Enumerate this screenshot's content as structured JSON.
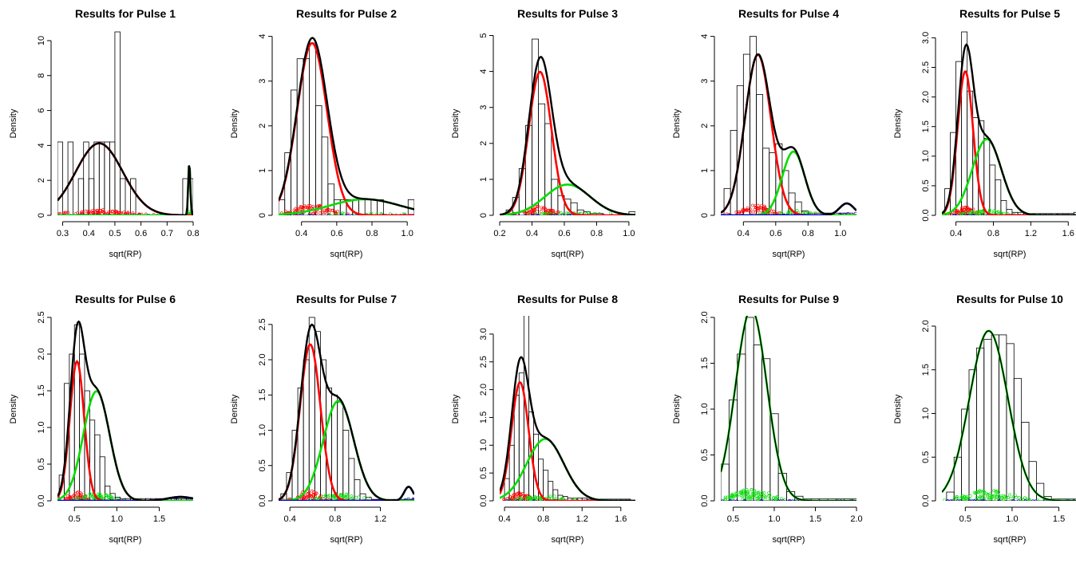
{
  "colors": {
    "total": "#000000",
    "comp1": "#ff0000",
    "comp2": "#00dd00",
    "comp3": "#0000cc",
    "bar_edge": "#000000",
    "background": "#ffffff"
  },
  "chart_data": [
    {
      "type": "histogram",
      "title": "Results for Pulse 1",
      "xlabel": "sqrt(RP)",
      "ylabel": "Density",
      "xlim": [
        0.28,
        0.8
      ],
      "ylim": [
        0,
        10.5
      ],
      "xticks": [
        0.3,
        0.4,
        0.5,
        0.6,
        0.7,
        0.8
      ],
      "yticks": [
        0,
        2,
        4,
        6,
        8,
        10
      ],
      "bin_width": 0.02,
      "bins_start": 0.28,
      "densities": [
        4.2,
        0,
        4.2,
        0,
        2.1,
        4.2,
        2.1,
        4.2,
        4.2,
        4.2,
        4.2,
        10.5,
        2.1,
        0,
        2.1,
        0,
        0,
        0,
        0,
        0,
        0,
        0,
        0,
        0,
        2.1,
        2.1
      ],
      "components": [
        {
          "color": "comp1",
          "weight": 0.93,
          "mean": 0.44,
          "sd": 0.09
        },
        {
          "color": "comp2",
          "weight": 0.03,
          "mean": 0.785,
          "sd": 0.004
        }
      ]
    },
    {
      "type": "histogram",
      "title": "Results for Pulse 2",
      "xlabel": "sqrt(RP)",
      "ylabel": "Density",
      "xlim": [
        0.27,
        1.04
      ],
      "ylim": [
        0,
        4.1
      ],
      "xticks": [
        0.4,
        0.6,
        0.8,
        1.0
      ],
      "yticks": [
        0,
        1,
        2,
        3,
        4
      ],
      "bin_width": 0.035,
      "bins_start": 0.27,
      "densities": [
        0.35,
        1.4,
        2.8,
        3.5,
        3.5,
        3.85,
        2.45,
        1.75,
        0.7,
        0.35,
        0.35,
        0.35,
        0.35,
        0.35,
        0,
        0.35,
        0.35,
        0,
        0,
        0,
        0,
        0.35
      ],
      "components": [
        {
          "color": "comp1",
          "weight": 0.82,
          "mean": 0.46,
          "sd": 0.085
        },
        {
          "color": "comp2",
          "weight": 0.18,
          "mean": 0.76,
          "sd": 0.2
        }
      ]
    },
    {
      "type": "histogram",
      "title": "Results for Pulse 3",
      "xlabel": "sqrt(RP)",
      "ylabel": "Density",
      "xlim": [
        0.2,
        1.04
      ],
      "ylim": [
        0,
        5.1
      ],
      "xticks": [
        0.2,
        0.4,
        0.6,
        0.8,
        1.0
      ],
      "yticks": [
        0,
        1,
        2,
        3,
        4,
        5
      ],
      "bin_width": 0.04,
      "bins_start": 0.24,
      "densities": [
        0.15,
        0.5,
        1.3,
        2.5,
        4.9,
        3.1,
        2.55,
        1.0,
        0.55,
        0.45,
        0.35,
        0.15,
        0.1,
        0.05,
        0.05,
        0,
        0,
        0,
        0,
        0.1
      ],
      "components": [
        {
          "color": "comp1",
          "weight": 0.7,
          "mean": 0.45,
          "sd": 0.07
        },
        {
          "color": "comp2",
          "weight": 0.3,
          "mean": 0.62,
          "sd": 0.14
        }
      ]
    },
    {
      "type": "histogram",
      "title": "Results for Pulse 4",
      "xlabel": "sqrt(RP)",
      "ylabel": "Density",
      "xlim": [
        0.26,
        1.1
      ],
      "ylim": [
        0,
        4.1
      ],
      "xticks": [
        0.4,
        0.6,
        0.8,
        1.0
      ],
      "yticks": [
        0,
        1,
        2,
        3,
        4
      ],
      "bin_width": 0.04,
      "bins_start": 0.28,
      "densities": [
        0.6,
        1.9,
        2.9,
        3.6,
        4.0,
        2.7,
        1.5,
        1.4,
        1.6,
        1.0,
        0.5,
        0.3,
        0.1,
        0.05,
        0.05,
        0.05,
        0.05,
        0.05,
        0.05,
        0.05
      ],
      "components": [
        {
          "color": "comp1",
          "weight": 0.72,
          "mean": 0.49,
          "sd": 0.08
        },
        {
          "color": "comp2",
          "weight": 0.25,
          "mean": 0.71,
          "sd": 0.07
        },
        {
          "color": "comp3",
          "weight": 0.03,
          "mean": 1.04,
          "sd": 0.045
        }
      ]
    },
    {
      "type": "histogram",
      "title": "Results for Pulse 5",
      "xlabel": "sqrt(RP)",
      "ylabel": "Density",
      "xlim": [
        0.25,
        1.7
      ],
      "ylim": [
        0,
        3.1
      ],
      "xticks": [
        0.4,
        0.8,
        1.2,
        1.6
      ],
      "yticks": [
        0,
        0.5,
        1.0,
        1.5,
        2.0,
        2.5,
        3.0
      ],
      "bin_width": 0.06,
      "bins_start": 0.28,
      "densities": [
        0.45,
        1.4,
        2.6,
        3.1,
        2.1,
        1.65,
        1.6,
        1.3,
        0.85,
        0.6,
        0.25,
        0.1,
        0.05,
        0.05,
        0.03,
        0.03,
        0.03,
        0.03,
        0.03,
        0.03,
        0.03,
        0.03,
        0.03,
        0.05
      ],
      "components": [
        {
          "color": "comp1",
          "weight": 0.5,
          "mean": 0.5,
          "sd": 0.082
        },
        {
          "color": "comp2",
          "weight": 0.5,
          "mean": 0.73,
          "sd": 0.155
        }
      ]
    },
    {
      "type": "histogram",
      "title": "Results for Pulse 6",
      "xlabel": "sqrt(RP)",
      "ylabel": "Density",
      "xlim": [
        0.3,
        1.9
      ],
      "ylim": [
        0,
        2.5
      ],
      "xticks": [
        0.5,
        1.0,
        1.5
      ],
      "yticks": [
        0,
        0.5,
        1.0,
        1.5,
        2.0,
        2.5
      ],
      "bin_width": 0.06,
      "bins_start": 0.32,
      "densities": [
        0.35,
        1.6,
        2.0,
        2.4,
        2.0,
        1.5,
        1.1,
        0.9,
        0.6,
        0.2,
        0.1,
        0.05,
        0.03,
        0.03,
        0.03,
        0.03,
        0.03,
        0.03,
        0.03,
        0.03,
        0.03,
        0.03,
        0.03,
        0.03,
        0.03,
        0.03
      ],
      "components": [
        {
          "color": "comp1",
          "weight": 0.4,
          "mean": 0.53,
          "sd": 0.084
        },
        {
          "color": "comp2",
          "weight": 0.58,
          "mean": 0.76,
          "sd": 0.155
        },
        {
          "color": "comp3",
          "weight": 0.02,
          "mean": 1.75,
          "sd": 0.15
        }
      ]
    },
    {
      "type": "histogram",
      "title": "Results for Pulse 7",
      "xlabel": "sqrt(RP)",
      "ylabel": "Density",
      "xlim": [
        0.3,
        1.5
      ],
      "ylim": [
        0,
        2.6
      ],
      "xticks": [
        0.4,
        0.8,
        1.2
      ],
      "yticks": [
        0,
        0.5,
        1.0,
        1.5,
        2.0,
        2.5
      ],
      "bin_width": 0.05,
      "bins_start": 0.32,
      "densities": [
        0.1,
        0.4,
        1.0,
        1.6,
        2.0,
        2.6,
        2.4,
        2.0,
        1.6,
        1.5,
        1.4,
        1.0,
        0.6,
        0.3,
        0.1,
        0.05,
        0.02,
        0.02,
        0.02,
        0.02,
        0.02,
        0.02,
        0.02,
        0.02
      ],
      "components": [
        {
          "color": "comp1",
          "weight": 0.5,
          "mean": 0.58,
          "sd": 0.09
        },
        {
          "color": "comp2",
          "weight": 0.48,
          "mean": 0.83,
          "sd": 0.135
        },
        {
          "color": "comp3",
          "weight": 0.02,
          "mean": 1.45,
          "sd": 0.04
        }
      ]
    },
    {
      "type": "histogram",
      "title": "Results for Pulse 8",
      "xlabel": "sqrt(RP)",
      "ylabel": "Density",
      "xlim": [
        0.35,
        1.75
      ],
      "ylim": [
        0,
        3.3
      ],
      "xticks": [
        0.4,
        0.8,
        1.2,
        1.6
      ],
      "yticks": [
        0,
        0.5,
        1.0,
        1.5,
        2.0,
        2.5,
        3.0
      ],
      "bin_width": 0.05,
      "bins_start": 0.4,
      "densities": [
        0.4,
        1.0,
        1.9,
        2.3,
        3.35,
        1.6,
        1.2,
        0.75,
        0.55,
        0.35,
        0.2,
        0.1,
        0.08,
        0.05,
        0.05,
        0.05,
        0.05,
        0.03,
        0.03,
        0.03,
        0.03,
        0.03,
        0.03,
        0.03,
        0.03,
        0.03
      ],
      "components": [
        {
          "color": "comp1",
          "weight": 0.47,
          "mean": 0.56,
          "sd": 0.088
        },
        {
          "color": "comp2",
          "weight": 0.53,
          "mean": 0.82,
          "sd": 0.19
        }
      ]
    },
    {
      "type": "histogram",
      "title": "Results for Pulse 9",
      "xlabel": "sqrt(RP)",
      "ylabel": "Density",
      "xlim": [
        0.35,
        2.0
      ],
      "ylim": [
        0,
        2.0
      ],
      "xticks": [
        0.5,
        1.0,
        1.5,
        2.0
      ],
      "yticks": [
        0,
        0.5,
        1.0,
        1.5,
        2.0
      ],
      "bin_width": 0.1,
      "bins_start": 0.35,
      "densities": [
        0.4,
        1.1,
        1.6,
        2.0,
        1.7,
        1.55,
        0.95,
        0.3,
        0.1,
        0.05,
        0.02,
        0.02,
        0.02,
        0.02,
        0.02,
        0.02,
        0.02
      ],
      "components": [
        {
          "color": "comp2",
          "weight": 0.995,
          "mean": 0.72,
          "sd": 0.19
        }
      ]
    },
    {
      "type": "histogram",
      "title": "Results for Pulse 10",
      "xlabel": "sqrt(RP)",
      "ylabel": "Density",
      "xlim": [
        0.25,
        1.7
      ],
      "ylim": [
        0,
        2.1
      ],
      "xticks": [
        0.5,
        1.0,
        1.5
      ],
      "yticks": [
        0,
        0.5,
        1.0,
        1.5,
        2.0
      ],
      "bin_width": 0.08,
      "bins_start": 0.3,
      "densities": [
        0.1,
        0.5,
        1.05,
        1.5,
        1.75,
        1.85,
        1.9,
        1.9,
        1.8,
        1.4,
        0.9,
        0.45,
        0.2,
        0.05,
        0.02,
        0.02,
        0.02,
        0.02
      ],
      "components": [
        {
          "color": "comp2",
          "weight": 1.0,
          "mean": 0.75,
          "sd": 0.205
        }
      ]
    }
  ]
}
